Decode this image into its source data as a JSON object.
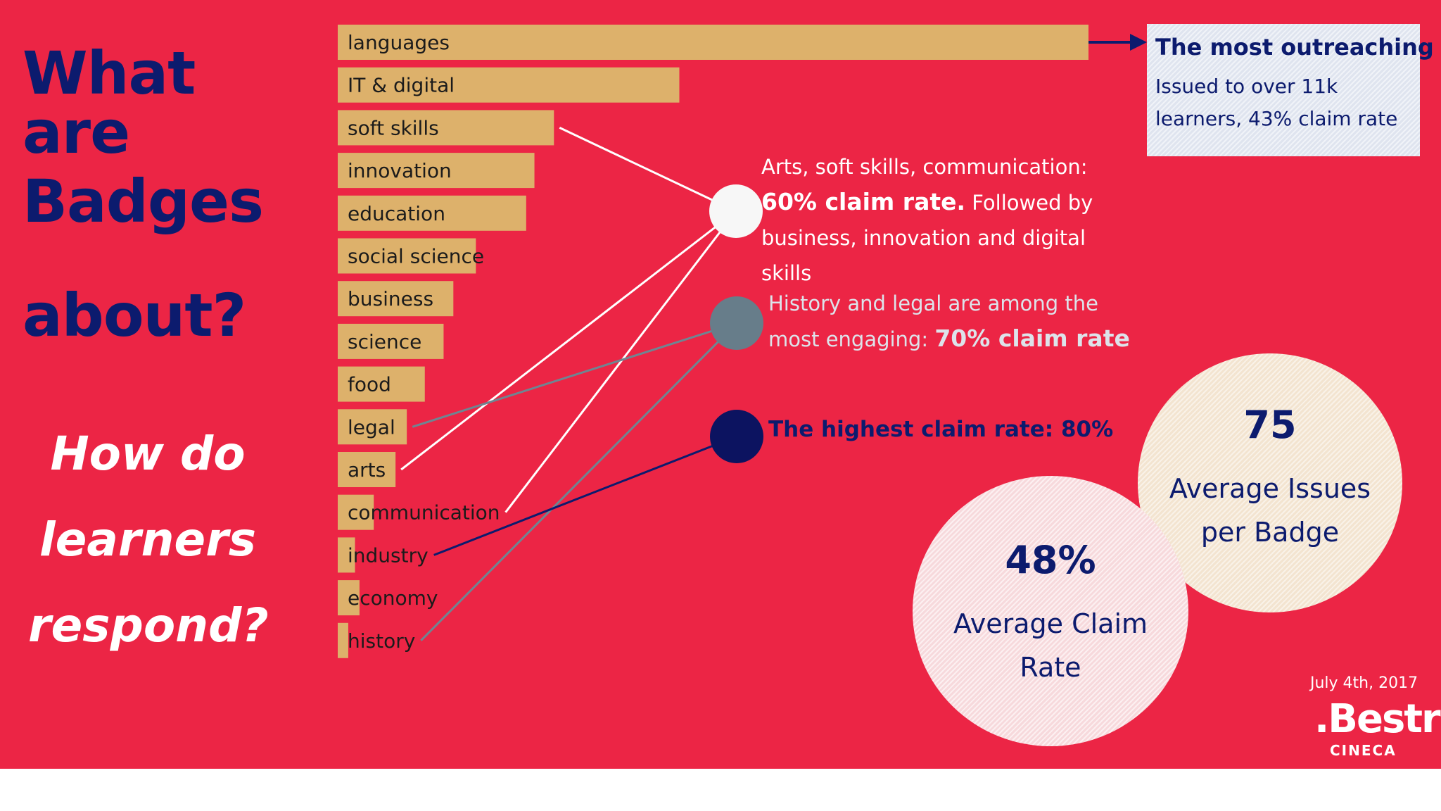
{
  "title_lines": [
    "What are",
    "Badges",
    "about?"
  ],
  "subtitle_lines": [
    "How do",
    "learners",
    "respond?"
  ],
  "chart_data": {
    "type": "bar",
    "orientation": "horizontal",
    "categories": [
      "languages",
      "IT & digital",
      "soft skills",
      "innovation",
      "education",
      "social science",
      "business",
      "science",
      "food",
      "legal",
      "arts",
      "communication",
      "industry",
      "economy",
      "history"
    ],
    "values": [
      100,
      45.5,
      28.8,
      26.2,
      25.1,
      18.4,
      15.4,
      14.1,
      11.6,
      9.2,
      7.7,
      4.8,
      2.3,
      2.9,
      1.4
    ],
    "bar_color": "#ddb16b",
    "xlabel": "",
    "ylabel": "",
    "grid": false
  },
  "connectors": [
    {
      "from": "soft skills",
      "to": "white",
      "color": "#ffffff"
    },
    {
      "from": "arts",
      "to": "white",
      "color": "#ffffff"
    },
    {
      "from": "communication",
      "to": "white",
      "color": "#ffffff"
    },
    {
      "from": "legal",
      "to": "grey",
      "color": "#6f8592"
    },
    {
      "from": "history",
      "to": "grey",
      "color": "#6f8592"
    },
    {
      "from": "industry",
      "to": "navy",
      "color": "#0c1b6e"
    }
  ],
  "dots": {
    "white": "#f7f7f7",
    "grey": "#677d8a",
    "navy": "#0c1360"
  },
  "callout": {
    "title": "The most outreaching",
    "body": "Issued to over 11k learners, 43% claim rate"
  },
  "notes": {
    "white_pre": "Arts, soft skills, communication: ",
    "white_bold": "60% claim rate.",
    "white_post": " Followed by business, innovation and digital skills",
    "grey_pre": "History and legal are among the most engaging: ",
    "grey_bold": "70% claim rate",
    "navy": "The highest claim rate: 80%"
  },
  "stats": {
    "issues_value": "75",
    "issues_label": "Average Issues per Badge",
    "claim_value": "48%",
    "claim_label": "Average Claim Rate"
  },
  "date": "July 4th, 2017",
  "logo": ".Bestr",
  "logo_sub": "CINECA",
  "colors": {
    "background": "#ec2545",
    "navy": "#0c1b6e",
    "bar": "#ddb16b"
  }
}
